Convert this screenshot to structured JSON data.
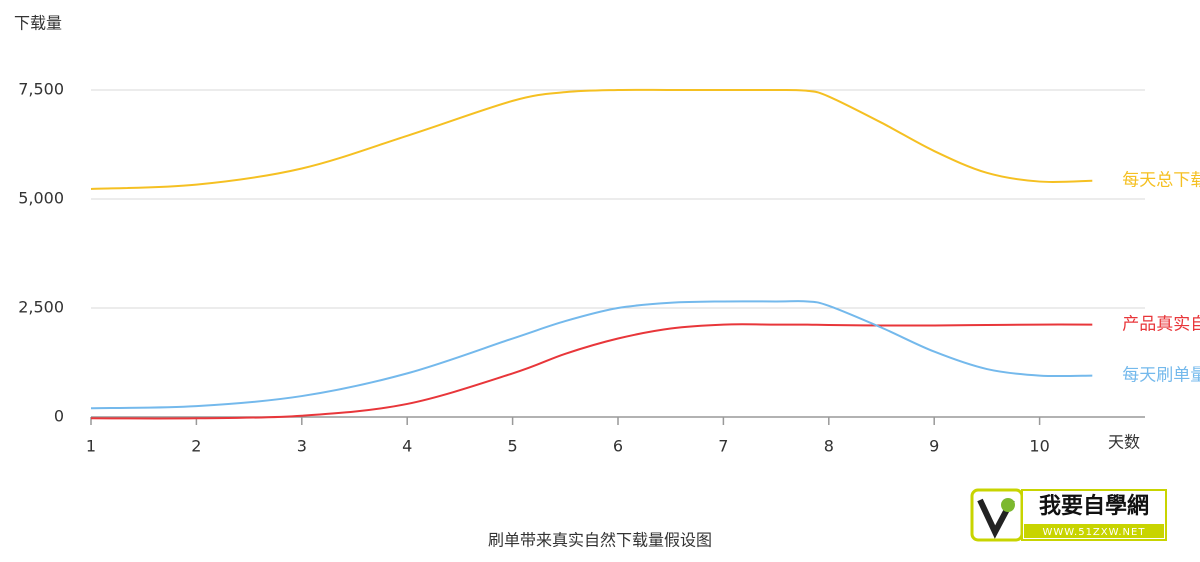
{
  "chart_data": {
    "type": "line",
    "title": "刷单带来真实自然下载量假设图",
    "y_label": "下载量",
    "x_label": "天数",
    "x": [
      1,
      2,
      3,
      4,
      5,
      5.5,
      6,
      6.5,
      7,
      7.5,
      7.8,
      8,
      8.5,
      9,
      9.5,
      10,
      10.5
    ],
    "series": [
      {
        "name": "每天总下载量",
        "color": "#f5c022",
        "values": [
          5230,
          5330,
          5700,
          6450,
          7250,
          7450,
          7500,
          7500,
          7500,
          7500,
          7480,
          7350,
          6750,
          6100,
          5600,
          5400,
          5420
        ]
      },
      {
        "name": "产品真实自然下载量",
        "color": "#e8363a",
        "values": [
          -30,
          -30,
          30,
          300,
          1000,
          1450,
          1800,
          2030,
          2120,
          2120,
          2120,
          2110,
          2100,
          2100,
          2110,
          2120,
          2120
        ]
      },
      {
        "name": "每天刷单量",
        "color": "#74b9ec",
        "values": [
          200,
          250,
          480,
          1000,
          1800,
          2200,
          2500,
          2620,
          2650,
          2650,
          2650,
          2550,
          2050,
          1500,
          1100,
          950,
          950
        ]
      }
    ],
    "xlim": [
      1,
      11
    ],
    "ylim": [
      0,
      7500
    ],
    "xticks": [
      1,
      2,
      3,
      4,
      5,
      6,
      7,
      8,
      9,
      10
    ],
    "yticks": [
      0,
      {
        "value": 2500,
        "label": "2,500"
      },
      {
        "value": 5000,
        "label": "5,000"
      },
      {
        "value": 7500,
        "label": "7,500"
      }
    ],
    "grid": true,
    "watermark": {
      "text": "我要自學網",
      "url": "WWW.51ZXW.NET"
    }
  }
}
